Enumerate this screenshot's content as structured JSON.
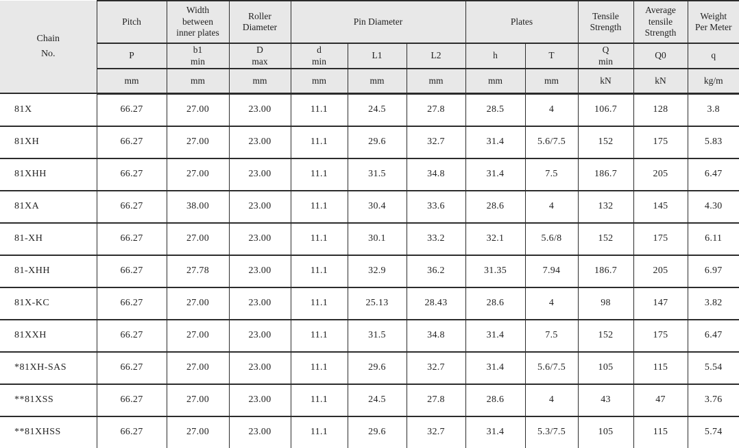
{
  "table": {
    "corner_label": "Chain\nNo.",
    "groups": [
      {
        "label": "Pitch"
      },
      {
        "label": "Width\nbetween\ninner plates"
      },
      {
        "label": "Roller\nDiameter"
      },
      {
        "label": "Pin Diameter"
      },
      {
        "label": "Plates"
      },
      {
        "label": "Tensile\nStrength"
      },
      {
        "label": "Average\ntensile\nStrength"
      },
      {
        "label": "Weight\nPer Meter"
      }
    ],
    "symbols": [
      "P",
      "b1\nmin",
      "D\nmax",
      "d\nmin",
      "L1",
      "L2",
      "h",
      "T",
      "Q\nmin",
      "Q0",
      "q"
    ],
    "units": [
      "mm",
      "mm",
      "mm",
      "mm",
      "mm",
      "mm",
      "mm",
      "mm",
      "kN",
      "kN",
      "kg/m"
    ],
    "rows": [
      {
        "chain": "81X",
        "values": [
          "66.27",
          "27.00",
          "23.00",
          "11.1",
          "24.5",
          "27.8",
          "28.5",
          "4",
          "106.7",
          "128",
          "3.8"
        ]
      },
      {
        "chain": "81XH",
        "values": [
          "66.27",
          "27.00",
          "23.00",
          "11.1",
          "29.6",
          "32.7",
          "31.4",
          "5.6/7.5",
          "152",
          "175",
          "5.83"
        ]
      },
      {
        "chain": "81XHH",
        "values": [
          "66.27",
          "27.00",
          "23.00",
          "11.1",
          "31.5",
          "34.8",
          "31.4",
          "7.5",
          "186.7",
          "205",
          "6.47"
        ]
      },
      {
        "chain": "81XA",
        "values": [
          "66.27",
          "38.00",
          "23.00",
          "11.1",
          "30.4",
          "33.6",
          "28.6",
          "4",
          "132",
          "145",
          "4.30"
        ]
      },
      {
        "chain": "81-XH",
        "values": [
          "66.27",
          "27.00",
          "23.00",
          "11.1",
          "30.1",
          "33.2",
          "32.1",
          "5.6/8",
          "152",
          "175",
          "6.11"
        ]
      },
      {
        "chain": "81-XHH",
        "values": [
          "66.27",
          "27.78",
          "23.00",
          "11.1",
          "32.9",
          "36.2",
          "31.35",
          "7.94",
          "186.7",
          "205",
          "6.97"
        ]
      },
      {
        "chain": "81X-KC",
        "values": [
          "66.27",
          "27.00",
          "23.00",
          "11.1",
          "25.13",
          "28.43",
          "28.6",
          "4",
          "98",
          "147",
          "3.82"
        ]
      },
      {
        "chain": "81XXH",
        "values": [
          "66.27",
          "27.00",
          "23.00",
          "11.1",
          "31.5",
          "34.8",
          "31.4",
          "7.5",
          "152",
          "175",
          "6.47"
        ]
      },
      {
        "chain": "*81XH-SAS",
        "values": [
          "66.27",
          "27.00",
          "23.00",
          "11.1",
          "29.6",
          "32.7",
          "31.4",
          "5.6/7.5",
          "105",
          "115",
          "5.54"
        ]
      },
      {
        "chain": "**81XSS",
        "values": [
          "66.27",
          "27.00",
          "23.00",
          "11.1",
          "24.5",
          "27.8",
          "28.6",
          "4",
          "43",
          "47",
          "3.76"
        ]
      },
      {
        "chain": "**81XHSS",
        "values": [
          "66.27",
          "27.00",
          "23.00",
          "11.1",
          "29.6",
          "32.7",
          "31.4",
          "5.3/7.5",
          "105",
          "115",
          "5.74"
        ]
      }
    ]
  }
}
